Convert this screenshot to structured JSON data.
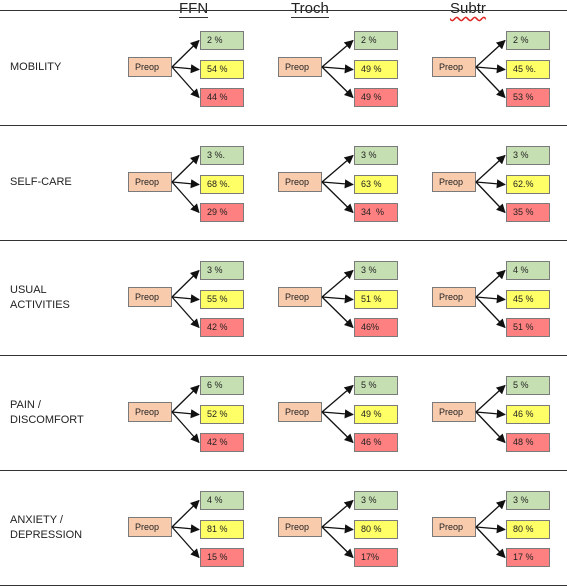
{
  "headers": {
    "ffn": "FFN",
    "troch": "Troch",
    "subtr": "Subtr"
  },
  "colors": {
    "preop": "#f8cbad",
    "improved": "#c5dfb2",
    "unchanged": "#ffff66",
    "worse": "#ff8080"
  },
  "preop_label": "Preop",
  "rows": [
    {
      "label": "MOBILITY",
      "ffn": [
        "2 %",
        "54 %",
        "44 %"
      ],
      "troch": [
        "2 %",
        "49 %",
        "49 %"
      ],
      "subtr": [
        "2 %",
        "45 %.",
        "53 %"
      ]
    },
    {
      "label": "SELF-CARE",
      "ffn": [
        "3 %.",
        "68 %.",
        "29 %"
      ],
      "troch": [
        "3 %",
        "63 %",
        "34  %"
      ],
      "subtr": [
        "3 %",
        "62.%",
        "35 %"
      ]
    },
    {
      "label": "USUAL\nACTIVITIES",
      "ffn": [
        "3 %",
        "55 %",
        "42 %"
      ],
      "troch": [
        "3 %",
        "51 %",
        "46%"
      ],
      "subtr": [
        "4 %",
        "45 %",
        "51 %"
      ]
    },
    {
      "label": "PAIN /\nDISCOMFORT",
      "ffn": [
        "6 %",
        "52 %",
        "42 %"
      ],
      "troch": [
        "5 %",
        "49 %",
        "46 %"
      ],
      "subtr": [
        "5 %",
        "46 %",
        "48 %"
      ]
    },
    {
      "label": "ANXIETY /\nDEPRESSION",
      "ffn": [
        "4 %",
        "81 %",
        "15 %"
      ],
      "troch": [
        "3 %",
        "80 %",
        "17%"
      ],
      "subtr": [
        "3 %",
        "80 %",
        "17 %"
      ]
    }
  ]
}
